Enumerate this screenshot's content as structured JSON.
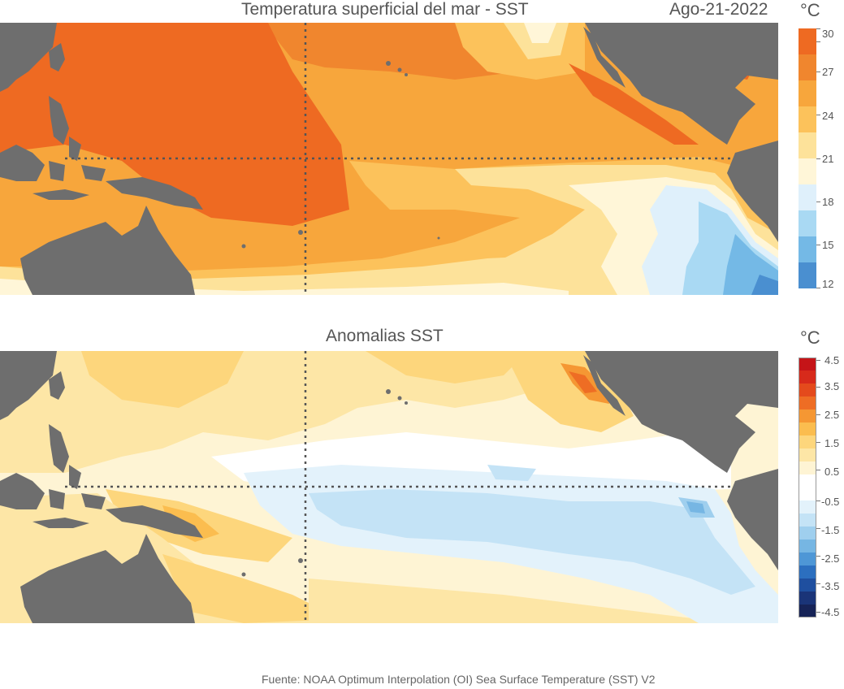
{
  "sst_panel": {
    "title": "Temperatura superficial del mar - SST",
    "date": "Ago-21-2022",
    "unit": "°C",
    "colorbar_labels": [
      "30",
      "27",
      "24",
      "21",
      "18",
      "15",
      "12"
    ],
    "colors": [
      "#ee6a22",
      "#f0862e",
      "#f7a63c",
      "#fcc25b",
      "#fde29a",
      "#fff6d8",
      "#dff0fb",
      "#a9d9f3",
      "#74b9e6",
      "#4a8fd0"
    ]
  },
  "anomaly_panel": {
    "title": "Anomalias SST",
    "unit": "°C",
    "colorbar_labels": [
      "4.5",
      "3.5",
      "2.5",
      "1.5",
      "0.5",
      "-0.5",
      "-1.5",
      "-2.5",
      "-3.5",
      "-4.5"
    ],
    "colors": [
      "#c51418",
      "#d72a1b",
      "#e44a1c",
      "#ee6d24",
      "#f59733",
      "#fbbd4f",
      "#fdd67c",
      "#fde6a6",
      "#fef4d4",
      "#ffffff",
      "#ffffff",
      "#e3f2fb",
      "#c4e3f6",
      "#9fcfee",
      "#76b6e3",
      "#4e97d6",
      "#2c6fbf",
      "#1f4f9f",
      "#1a3478",
      "#162357"
    ]
  },
  "map_colors": {
    "land": "#6e6e6e",
    "grid_line": "#555555"
  },
  "footer": {
    "text": "Fuente: NOAA Optimum Interpolation (OI) Sea Surface Temperature (SST) V2"
  }
}
